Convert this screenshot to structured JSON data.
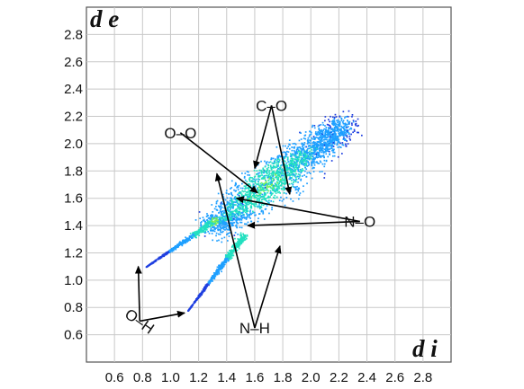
{
  "chart_data": {
    "type": "heatmap",
    "xlabel": "d i",
    "ylabel": "d e",
    "xlim": [
      0.4,
      3.0
    ],
    "ylim": [
      0.4,
      3.0
    ],
    "x_ticks": [
      "0.6",
      "0.8",
      "1.0",
      "1.2",
      "1.4",
      "1.6",
      "1.8",
      "2.0",
      "2.2",
      "2.4",
      "2.6",
      "2.8"
    ],
    "y_ticks": [
      "2.8",
      "2.6",
      "2.4",
      "2.2",
      "2.0",
      "1.8",
      "1.6",
      "1.4",
      "1.2",
      "1.0",
      "0.8",
      "0.6"
    ],
    "grid": true,
    "color_scale": [
      "#1f3fe0",
      "#1fa0ff",
      "#22e0c0",
      "#7cf050"
    ],
    "regions": [
      {
        "x": [
          1.25,
          2.25
        ],
        "y": [
          1.3,
          2.2
        ],
        "density": 0.6
      },
      {
        "x": [
          0.82,
          1.3
        ],
        "y": [
          1.08,
          1.45
        ],
        "density": 0.4
      },
      {
        "x": [
          1.1,
          1.55
        ],
        "y": [
          0.75,
          1.3
        ],
        "density": 0.4
      }
    ],
    "annotations": [
      {
        "label": "C–O",
        "text_at": [
          1.72,
          2.28
        ],
        "arrows_to": [
          [
            1.6,
            1.82
          ],
          [
            1.85,
            1.63
          ]
        ]
      },
      {
        "label": "O–O",
        "text_at": [
          1.07,
          2.08
        ],
        "arrows_to": [
          [
            1.62,
            1.64
          ]
        ]
      },
      {
        "label": "N–O",
        "text_at": [
          2.35,
          1.43
        ],
        "arrows_to": [
          [
            1.47,
            1.6
          ],
          [
            1.55,
            1.4
          ]
        ]
      },
      {
        "label": "N–H",
        "text_at": [
          1.6,
          0.65
        ],
        "arrows_to": [
          [
            1.33,
            1.78
          ],
          [
            1.78,
            1.25
          ]
        ]
      },
      {
        "label": "O–H",
        "text_at": [
          0.78,
          0.7
        ],
        "arrows_to": [
          [
            0.77,
            1.1
          ],
          [
            1.1,
            0.76
          ]
        ]
      }
    ]
  }
}
